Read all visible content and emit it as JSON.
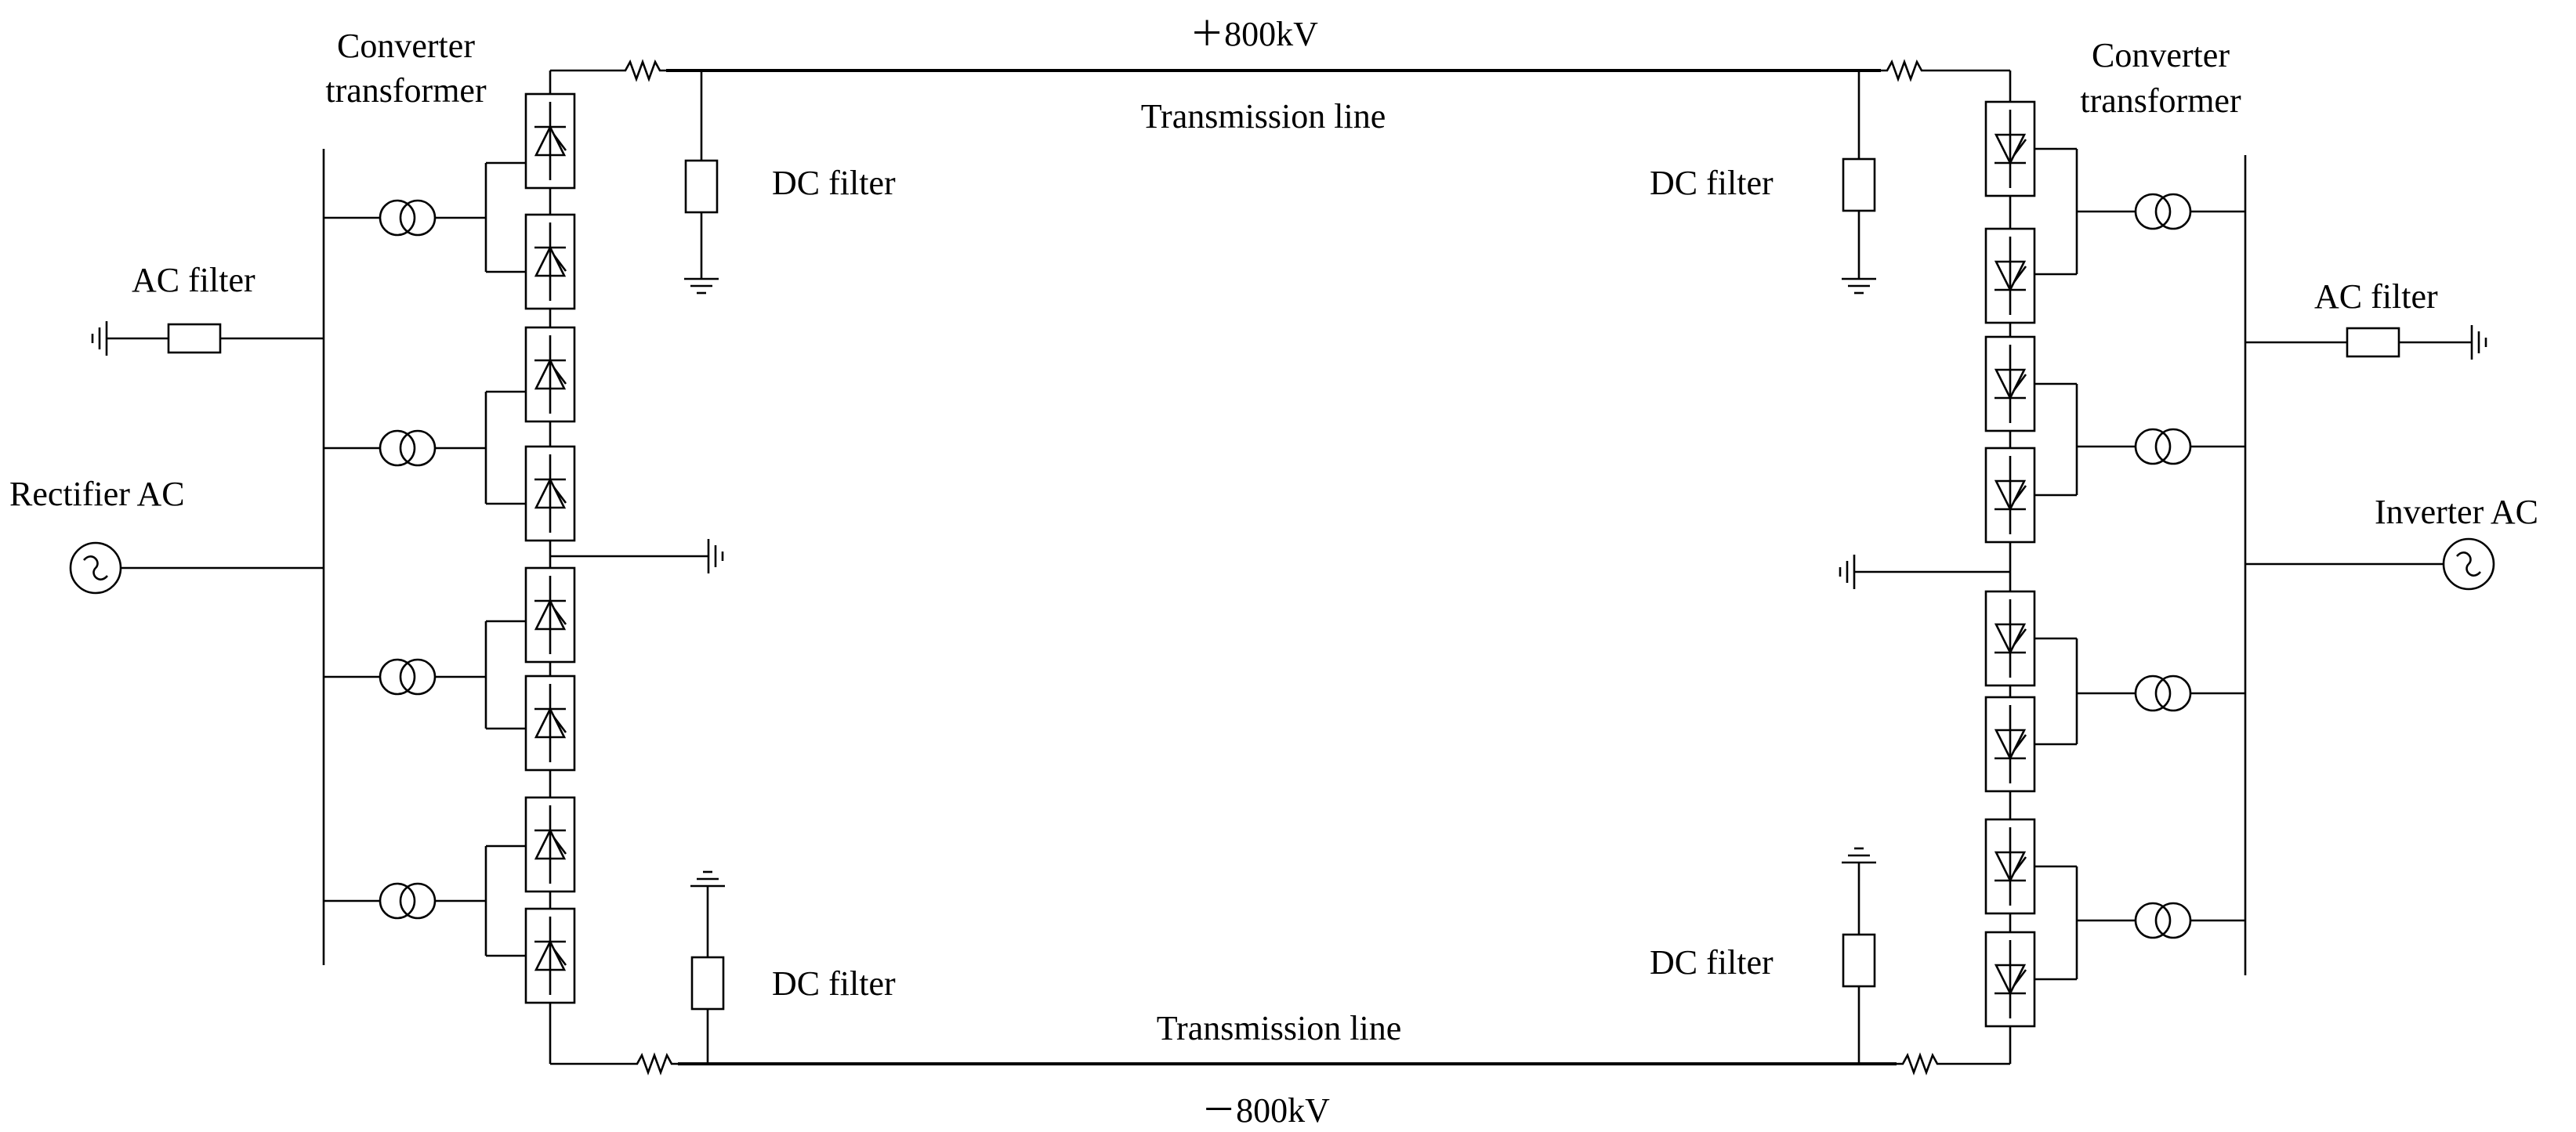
{
  "labels": {
    "pos_voltage": "＋800kV",
    "neg_voltage": "－800kV",
    "line_top": "Transmission line",
    "line_bottom": "Transmission line",
    "converter_transformer_left": [
      "Converter",
      "transformer"
    ],
    "converter_transformer_right": [
      "Converter",
      "transformer"
    ],
    "ac_filter_left": "AC filter",
    "ac_filter_right": "AC filter",
    "dc_filter_left_top": "DC filter",
    "dc_filter_right_top": "DC filter",
    "dc_filter_left_bottom": "DC filter",
    "dc_filter_right_bottom": "DC filter",
    "rectifier_ac": "Rectifier AC",
    "inverter_ac": "Inverter AC"
  },
  "symbols": {
    "ac_source": "ac-source-icon",
    "transformer": "transformer-icon",
    "valve_rectifier": "thyristor-valve-up-icon",
    "valve_inverter": "thyristor-valve-down-icon",
    "ground": "ground-icon",
    "resistor": "smoothing-resistor-icon",
    "filter": "filter-box-icon"
  },
  "colors": {
    "line": "#000000",
    "background": "#ffffff"
  }
}
